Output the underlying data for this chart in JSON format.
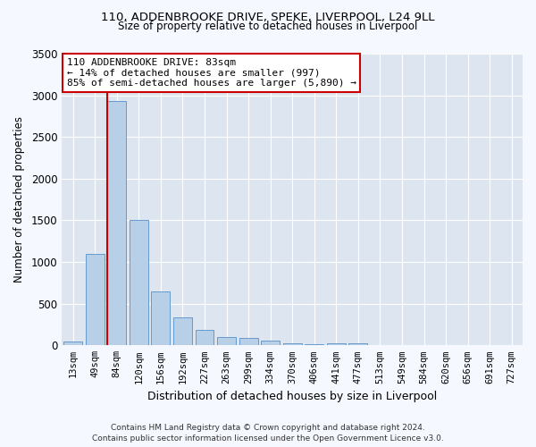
{
  "title1": "110, ADDENBROOKE DRIVE, SPEKE, LIVERPOOL, L24 9LL",
  "title2": "Size of property relative to detached houses in Liverpool",
  "xlabel": "Distribution of detached houses by size in Liverpool",
  "ylabel": "Number of detached properties",
  "categories": [
    "13sqm",
    "49sqm",
    "84sqm",
    "120sqm",
    "156sqm",
    "192sqm",
    "227sqm",
    "263sqm",
    "299sqm",
    "334sqm",
    "370sqm",
    "406sqm",
    "441sqm",
    "477sqm",
    "513sqm",
    "549sqm",
    "584sqm",
    "620sqm",
    "656sqm",
    "691sqm",
    "727sqm"
  ],
  "values": [
    50,
    1100,
    2930,
    1500,
    650,
    335,
    190,
    105,
    85,
    55,
    30,
    10,
    30,
    20,
    0,
    0,
    0,
    0,
    0,
    0,
    0
  ],
  "bar_color": "#b8cfe8",
  "bar_edge_color": "#6699cc",
  "annotation_text_line1": "110 ADDENBROOKE DRIVE: 83sqm",
  "annotation_text_line2": "← 14% of detached houses are smaller (997)",
  "annotation_text_line3": "85% of semi-detached houses are larger (5,890) →",
  "annotation_box_facecolor": "#ffffff",
  "annotation_box_edgecolor": "#cc0000",
  "vline_color": "#cc0000",
  "vline_x": 1.575,
  "ylim": [
    0,
    3500
  ],
  "yticks": [
    0,
    500,
    1000,
    1500,
    2000,
    2500,
    3000,
    3500
  ],
  "fig_facecolor": "#f5f8ff",
  "ax_facecolor": "#dde6f0",
  "grid_color": "#ffffff",
  "footer1": "Contains HM Land Registry data © Crown copyright and database right 2024.",
  "footer2": "Contains public sector information licensed under the Open Government Licence v3.0."
}
